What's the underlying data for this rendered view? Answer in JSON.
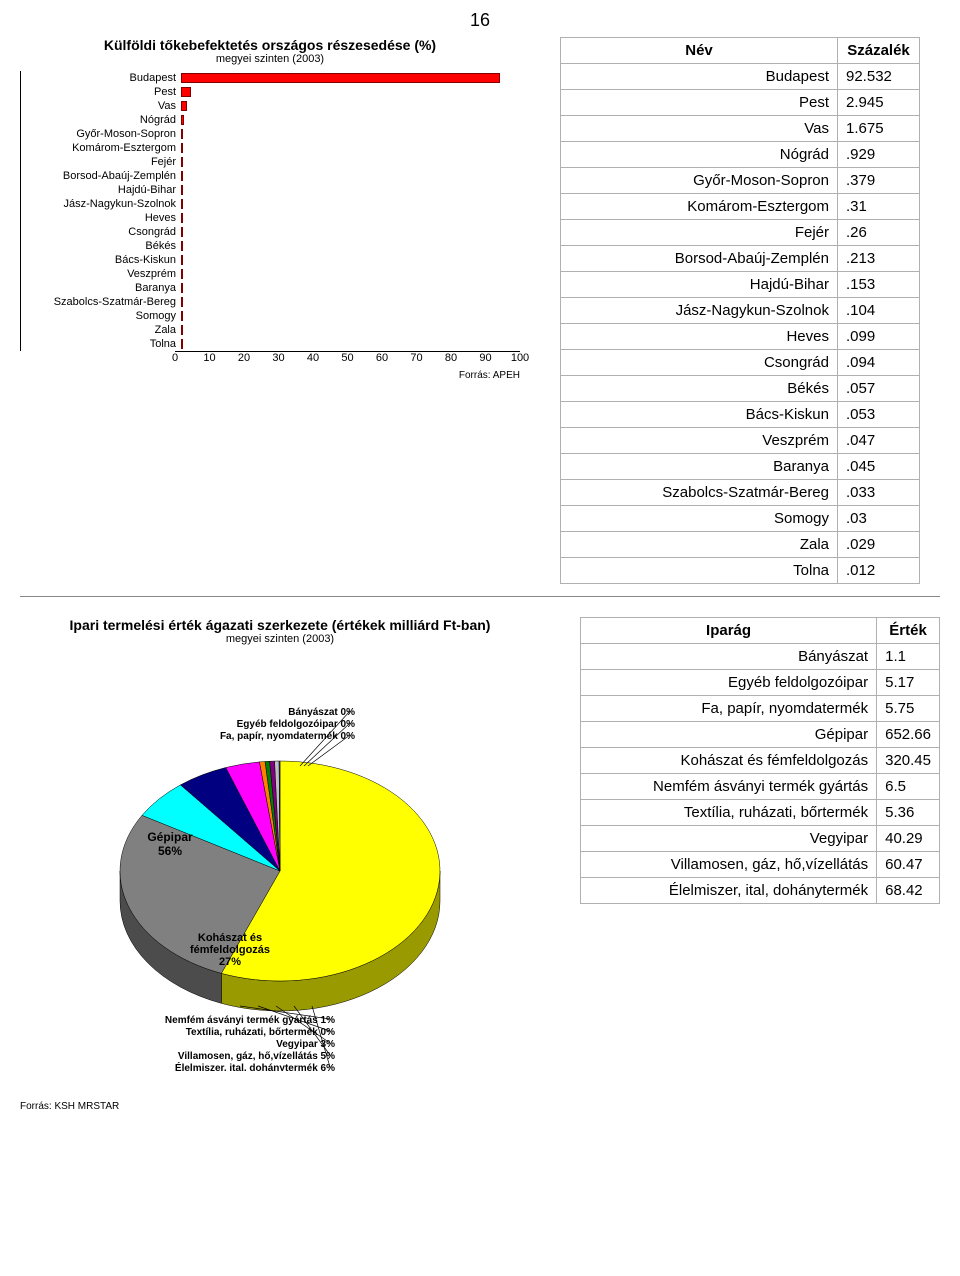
{
  "page_number": "16",
  "bar_chart": {
    "type": "bar",
    "title": "Külföldi tőkebefektetés országos részesedése (%)",
    "subtitle": "megyei szinten (2003)",
    "source": "Forrás: APEH",
    "bar_color": "#ff0000",
    "bar_border": "#800000",
    "xmin": 0,
    "xmax": 100,
    "xtick_step": 10,
    "label_fontsize": 11,
    "categories": [
      "Budapest",
      "Pest",
      "Vas",
      "Nógrád",
      "Győr-Moson-Sopron",
      "Komárom-Esztergom",
      "Fejér",
      "Borsod-Abaúj-Zemplén",
      "Hajdú-Bihar",
      "Jász-Nagykun-Szolnok",
      "Heves",
      "Csongrád",
      "Békés",
      "Bács-Kiskun",
      "Veszprém",
      "Baranya",
      "Szabolcs-Szatmár-Bereg",
      "Somogy",
      "Zala",
      "Tolna"
    ],
    "values": [
      92.532,
      2.945,
      1.675,
      0.929,
      0.379,
      0.31,
      0.26,
      0.213,
      0.153,
      0.104,
      0.099,
      0.094,
      0.057,
      0.053,
      0.047,
      0.045,
      0.033,
      0.03,
      0.029,
      0.012
    ]
  },
  "table1": {
    "headers": [
      "Név",
      "Százalék"
    ],
    "rows": [
      [
        "Budapest",
        "92.532"
      ],
      [
        "Pest",
        "2.945"
      ],
      [
        "Vas",
        "1.675"
      ],
      [
        "Nógrád",
        ".929"
      ],
      [
        "Győr-Moson-Sopron",
        ".379"
      ],
      [
        "Komárom-Esztergom",
        ".31"
      ],
      [
        "Fejér",
        ".26"
      ],
      [
        "Borsod-Abaúj-Zemplén",
        ".213"
      ],
      [
        "Hajdú-Bihar",
        ".153"
      ],
      [
        "Jász-Nagykun-Szolnok",
        ".104"
      ],
      [
        "Heves",
        ".099"
      ],
      [
        "Csongrád",
        ".094"
      ],
      [
        "Békés",
        ".057"
      ],
      [
        "Bács-Kiskun",
        ".053"
      ],
      [
        "Veszprém",
        ".047"
      ],
      [
        "Baranya",
        ".045"
      ],
      [
        "Szabolcs-Szatmár-Bereg",
        ".033"
      ],
      [
        "Somogy",
        ".03"
      ],
      [
        "Zala",
        ".029"
      ],
      [
        "Tolna",
        ".012"
      ]
    ]
  },
  "pie_chart": {
    "type": "pie",
    "title": "Ipari termelési érték ágazati szerkezete (értékek milliárd Ft-ban)",
    "subtitle": "megyei szinten (2003)",
    "source": "Forrás: KSH MRSTAR",
    "slices": [
      {
        "label": "Gépipar",
        "pct": 56,
        "value": 652.66,
        "color": "#ffff00"
      },
      {
        "label": "Kohászat és fémfeldolgozás",
        "pct": 27,
        "value": 320.45,
        "color": "#808080"
      },
      {
        "label": "Élelmiszer, ital, dohánytermék",
        "pct": 6,
        "value": 68.42,
        "color": "#00ffff"
      },
      {
        "label": "Villamosen, gáz, hő,vízellátás",
        "pct": 5,
        "value": 60.47,
        "color": "#000080"
      },
      {
        "label": "Vegyipar",
        "pct": 3,
        "value": 40.29,
        "color": "#ff00ff"
      },
      {
        "label": "Nemfém ásványi termék gyártás",
        "pct": 1,
        "value": 6.5,
        "color": "#ff8000"
      },
      {
        "label": "Textília, ruházati, bőrtermék",
        "pct": 0,
        "value": 5.36,
        "color": "#008000"
      },
      {
        "label": "Fa, papír, nyomdatermék",
        "pct": 0,
        "value": 5.75,
        "color": "#800080"
      },
      {
        "label": "Egyéb feldolgozóipar",
        "pct": 0,
        "value": 5.17,
        "color": "#c0c0c0"
      },
      {
        "label": "Bányászat",
        "pct": 0,
        "value": 1.1,
        "color": "#4040ff"
      }
    ],
    "top_callouts": [
      "Bányászat 0%",
      "Egyéb feldolgozóipar 0%",
      "Fa, papír, nyomdatermék 0%"
    ],
    "bottom_callouts": [
      "Nemfém ásványi termék gyártás 1%",
      "Textília, ruházati, bőrtermék 0%",
      "Vegyipar 3%",
      "Villamosen, gáz, hő,vízellátás 5%",
      "Élelmiszer, ital, dohánytermék 6%"
    ],
    "mid_labels": {
      "gepipar": "Gépipar\n56%",
      "kohaszat": "Kohászat és\nfémfeldolgozás\n27%"
    }
  },
  "table2": {
    "headers": [
      "Iparág",
      "Érték"
    ],
    "rows": [
      [
        "Bányászat",
        "1.1"
      ],
      [
        "Egyéb feldolgozóipar",
        "5.17"
      ],
      [
        "Fa, papír, nyomdatermék",
        "5.75"
      ],
      [
        "Gépipar",
        "652.66"
      ],
      [
        "Kohászat és fémfeldolgozás",
        "320.45"
      ],
      [
        "Nemfém ásványi termék gyártás",
        "6.5"
      ],
      [
        "Textília, ruházati, bőrtermék",
        "5.36"
      ],
      [
        "Vegyipar",
        "40.29"
      ],
      [
        "Villamosen, gáz, hő,vízellátás",
        "60.47"
      ],
      [
        "Élelmiszer, ital, dohánytermék",
        "68.42"
      ]
    ]
  }
}
